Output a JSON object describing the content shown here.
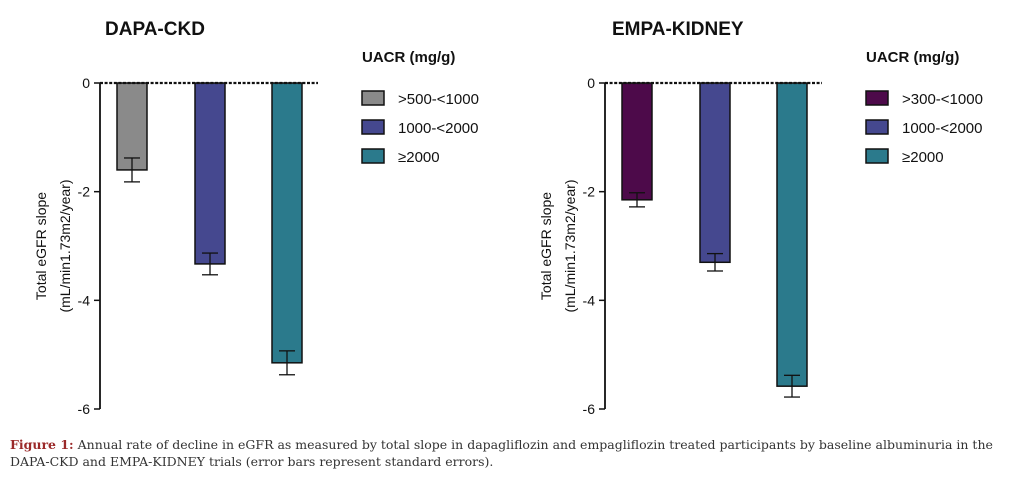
{
  "chart_data": [
    {
      "type": "bar",
      "title": "DAPA-CKD",
      "ylabel_line1": "Total eGFR slope",
      "ylabel_line2": "(mL/min1.73m2/year)",
      "xlabel": "",
      "ylim": [
        -6,
        0
      ],
      "yticks": [
        0,
        -2,
        -4,
        -6
      ],
      "legend_title": "UACR (mg/g)",
      "legend_position": "right",
      "categories": [
        ">500-<1000",
        "1000-<2000",
        "≥2000"
      ],
      "values": [
        -1.6,
        -3.33,
        -5.15
      ],
      "errors": [
        0.22,
        0.2,
        0.22
      ],
      "colors": [
        "#8a8a8a",
        "#45488f",
        "#2b7a8c"
      ]
    },
    {
      "type": "bar",
      "title": "EMPA-KIDNEY",
      "ylabel_line1": "Total eGFR slope",
      "ylabel_line2": "(mL/min1.73m2/year)",
      "xlabel": "",
      "ylim": [
        -6,
        0
      ],
      "yticks": [
        0,
        -2,
        -4,
        -6
      ],
      "legend_title": "UACR (mg/g)",
      "legend_position": "right",
      "categories": [
        ">300-<1000",
        "1000-<2000",
        "≥2000"
      ],
      "values": [
        -2.15,
        -3.3,
        -5.58
      ],
      "errors": [
        0.13,
        0.16,
        0.2
      ],
      "colors": [
        "#4d0a4a",
        "#45488f",
        "#2b7a8c"
      ]
    }
  ],
  "caption": {
    "label": "Figure 1:",
    "text": "Annual rate of decline in eGFR as measured by total slope in dapagliflozin and empagliflozin treated participants by baseline albuminuria in the DAPA-CKD and EMPA-KIDNEY trials (error bars represent standard errors)."
  }
}
